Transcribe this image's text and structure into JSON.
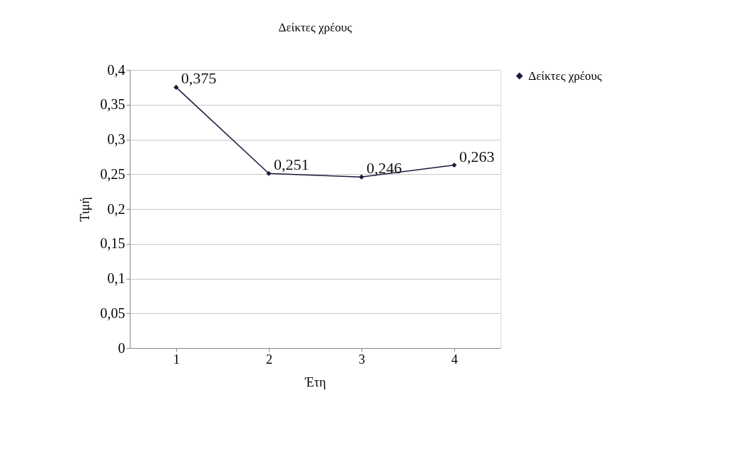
{
  "chart_data": {
    "type": "line",
    "title": "Δείκτες χρέους",
    "xlabel": "Έτη",
    "ylabel": "Τιμή",
    "categories": [
      "1",
      "2",
      "3",
      "4"
    ],
    "series": [
      {
        "name": "Δείκτες χρέους",
        "color": "#1a1a40",
        "values": [
          0.375,
          0.251,
          0.246,
          0.263
        ],
        "value_labels": [
          "0,375",
          "0,251",
          "0,246",
          "0,263"
        ]
      }
    ],
    "ylim": [
      0,
      0.4
    ],
    "yticks": [
      {
        "value": 0,
        "label": "0"
      },
      {
        "value": 0.05,
        "label": "0,05"
      },
      {
        "value": 0.1,
        "label": "0,1"
      },
      {
        "value": 0.15,
        "label": "0,15"
      },
      {
        "value": 0.2,
        "label": "0,2"
      },
      {
        "value": 0.25,
        "label": "0,25"
      },
      {
        "value": 0.3,
        "label": "0,3"
      },
      {
        "value": 0.35,
        "label": "0,35"
      },
      {
        "value": 0.4,
        "label": "0,4"
      }
    ],
    "grid": "y",
    "legend": "right",
    "marker": "diamond",
    "line_style": "solid"
  }
}
